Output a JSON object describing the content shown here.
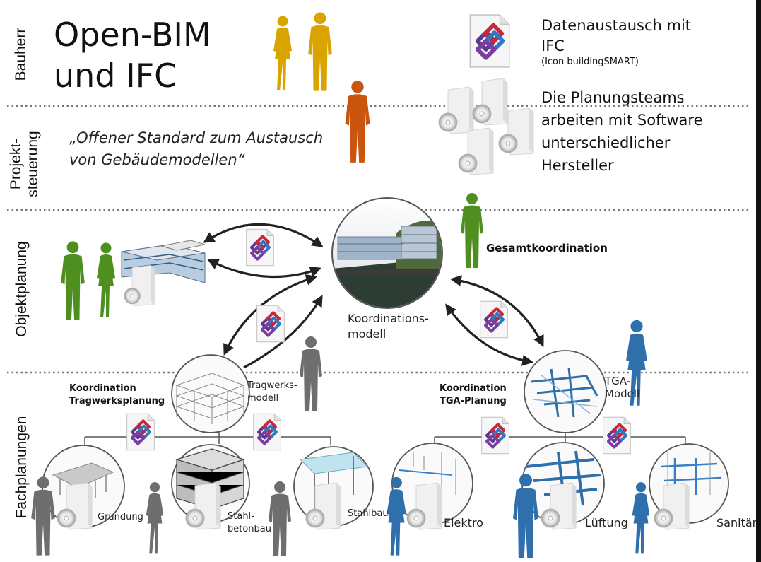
{
  "title": {
    "line1": "Open-BIM",
    "line2": "und IFC"
  },
  "quote": {
    "line1": "„Offener Standard zum Austausch",
    "line2": "von Gebäudemodellen“"
  },
  "bands": {
    "bauherr": "Bauherr",
    "projektsteuerung_line1": "Projekt-",
    "projektsteuerung_line2": "steuerung",
    "objektplanung": "Objektplanung",
    "fachplanungen": "Fachplanungen"
  },
  "ifc_note": {
    "line1": "Datenaustausch mit",
    "line2": "IFC",
    "line3": "(Icon buildingSMART)"
  },
  "software_note": {
    "line1": "Die Planungsteams",
    "line2": "arbeiten mit Software",
    "line3": "unterschiedlicher",
    "line4": "Hersteller"
  },
  "nodes": {
    "gesamtkoordination": "Gesamtkoordination",
    "koordinationsmodell_1": "Koordinations-",
    "koordinationsmodell_2": "modell",
    "tragwerksmodell_1": "Tragwerks-",
    "tragwerksmodell_2": "modell",
    "tga_modell_1": "TGA-",
    "tga_modell_2": "Modell",
    "koord_tragwerk_1": "Koordination",
    "koord_tragwerk_2": "Tragwerksplanung",
    "koord_tga_1": "Koordination",
    "koord_tga_2": "TGA-Planung",
    "gruendung": "Gründung",
    "stahlbeton_1": "Stahl-",
    "stahlbeton_2": "betonbau",
    "stahlbau": "Stahlbau",
    "elektro": "Elektro",
    "lueftung": "Lüftung",
    "sanitaer": "Sanitär"
  },
  "colors": {
    "bauherr": "#d9a300",
    "projektsteuerung": "#c9550f",
    "objektplanung": "#4e8f1f",
    "tragwerk": "#6e6e6e",
    "tga": "#2f6fab",
    "ifc_purple": "#5a3b8c",
    "ifc_red": "#c8283c",
    "ifc_blue": "#2f79c4"
  }
}
